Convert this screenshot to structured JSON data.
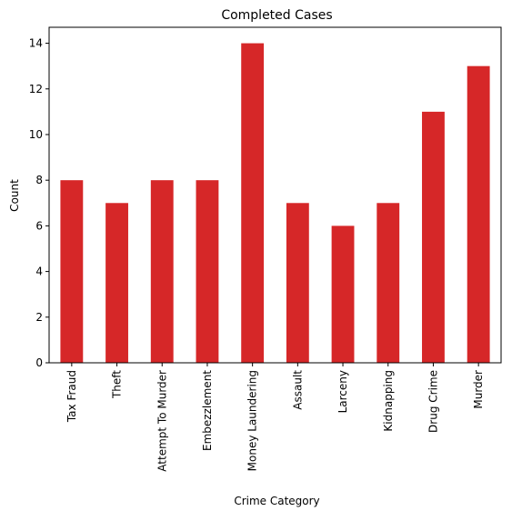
{
  "chart_data": {
    "type": "bar",
    "title": "Completed Cases",
    "xlabel": "Crime Category",
    "ylabel": "Count",
    "categories": [
      "Tax Fraud",
      "Theft",
      "Attempt To Murder",
      "Embezzlement",
      "Money Laundering",
      "Assault",
      "Larceny",
      "Kidnapping",
      "Drug Crime",
      "Murder"
    ],
    "values": [
      8,
      7,
      8,
      8,
      14,
      7,
      6,
      7,
      11,
      13
    ],
    "ylim": [
      0,
      14.7
    ],
    "yticks": [
      0,
      2,
      4,
      6,
      8,
      10,
      12,
      14
    ],
    "grid": false,
    "bar_color": "#d62728"
  }
}
